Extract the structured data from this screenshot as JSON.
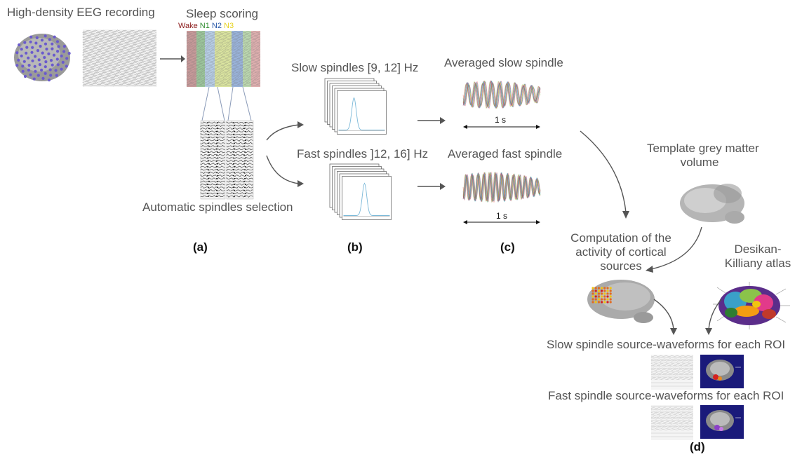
{
  "titles": {
    "eeg_recording": "High-density EEG recording",
    "sleep_scoring": "Sleep scoring",
    "auto_selection": "Automatic spindles selection",
    "slow_spindles": "Slow spindles [9, 12] Hz",
    "fast_spindles": "Fast spindles ]12, 16] Hz",
    "avg_slow": "Averaged slow spindle",
    "avg_fast": "Averaged fast spindle",
    "template_line1": "Template grey matter",
    "template_line2": "volume",
    "comp_line1": "Computation of the",
    "comp_line2": "activity of cortical",
    "comp_line3": "sources",
    "atlas_line1": "Desikan-",
    "atlas_line2": "Killiany atlas",
    "slow_roi": "Slow spindle source-waveforms for each ROI",
    "fast_roi": "Fast spindle source-waveforms for each ROI"
  },
  "stages": [
    {
      "label": "Wake",
      "color": "#8b1a1a"
    },
    {
      "label": "N1",
      "color": "#2e8b2e"
    },
    {
      "label": "N2",
      "color": "#2a5aa8"
    },
    {
      "label": "N3",
      "color": "#e6d21e"
    }
  ],
  "scale_labels": {
    "slow": "1 s",
    "fast": "1 s"
  },
  "panels": {
    "a": "(a)",
    "b": "(b)",
    "c": "(c)",
    "d": "(d)"
  },
  "colors": {
    "arrow": "#555555",
    "electrode": "#6a5acd",
    "source_red": "#d42020",
    "mri_bg": "#1a1a7a"
  }
}
